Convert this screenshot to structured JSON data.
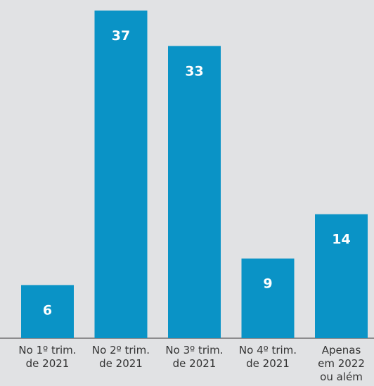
{
  "chart_data": {
    "type": "bar",
    "categories": [
      [
        "No 1º trim.",
        "de 2021"
      ],
      [
        "No 2º trim.",
        "de 2021"
      ],
      [
        "No 3º trim.",
        "de 2021"
      ],
      [
        "No 4º trim.",
        "de 2021"
      ],
      [
        "Apenas",
        "em 2022",
        "ou além"
      ]
    ],
    "values": [
      6,
      37,
      33,
      9,
      14
    ],
    "data_labels": [
      "6",
      "37",
      "33",
      "9",
      "14"
    ],
    "ylim": [
      0,
      38
    ],
    "grid": false,
    "legend": "none",
    "colors": {
      "bar": "#0a93c6",
      "background": "#e1e2e4",
      "label": "#ffffff",
      "axis_text": "#333333"
    }
  }
}
